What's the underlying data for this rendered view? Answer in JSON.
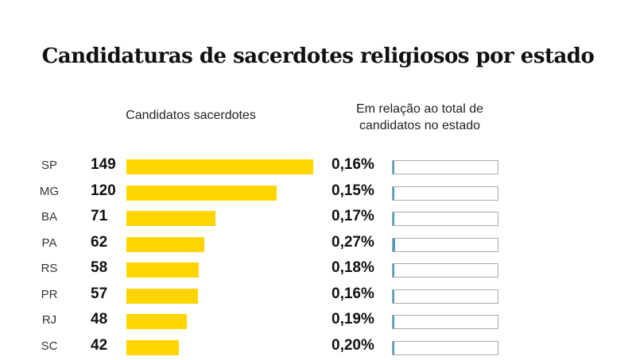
{
  "chart_data": {
    "type": "bar",
    "title": "Candidaturas de sacerdotes religiosos por estado",
    "categories": [
      "SP",
      "MG",
      "BA",
      "PA",
      "RS",
      "PR",
      "RJ",
      "SC"
    ],
    "series": [
      {
        "name": "Candidatos sacerdotes",
        "values": [
          149,
          120,
          71,
          62,
          58,
          57,
          48,
          42
        ],
        "labels": [
          "149",
          "120",
          "71",
          "62",
          "58",
          "57",
          "48",
          "42"
        ],
        "color": "#FFD500",
        "xlim": [
          0,
          149
        ]
      },
      {
        "name": "Em relação ao total de candidatos no estado",
        "values": [
          0.16,
          0.15,
          0.17,
          0.27,
          0.18,
          0.16,
          0.19,
          0.2
        ],
        "labels": [
          "0,16%",
          "0,15%",
          "0,17%",
          "0,27%",
          "0,18%",
          "0,16%",
          "0,19%",
          "0,20%"
        ],
        "color": "#4A9FC3",
        "xlim": [
          0,
          100
        ]
      }
    ],
    "xlabel": "",
    "ylabel": "",
    "grid": false,
    "legend": "none"
  },
  "headers": {
    "left": "Candidatos sacerdotes",
    "right_line1": "Em relação ao total de",
    "right_line2": "candidatos no estado"
  }
}
